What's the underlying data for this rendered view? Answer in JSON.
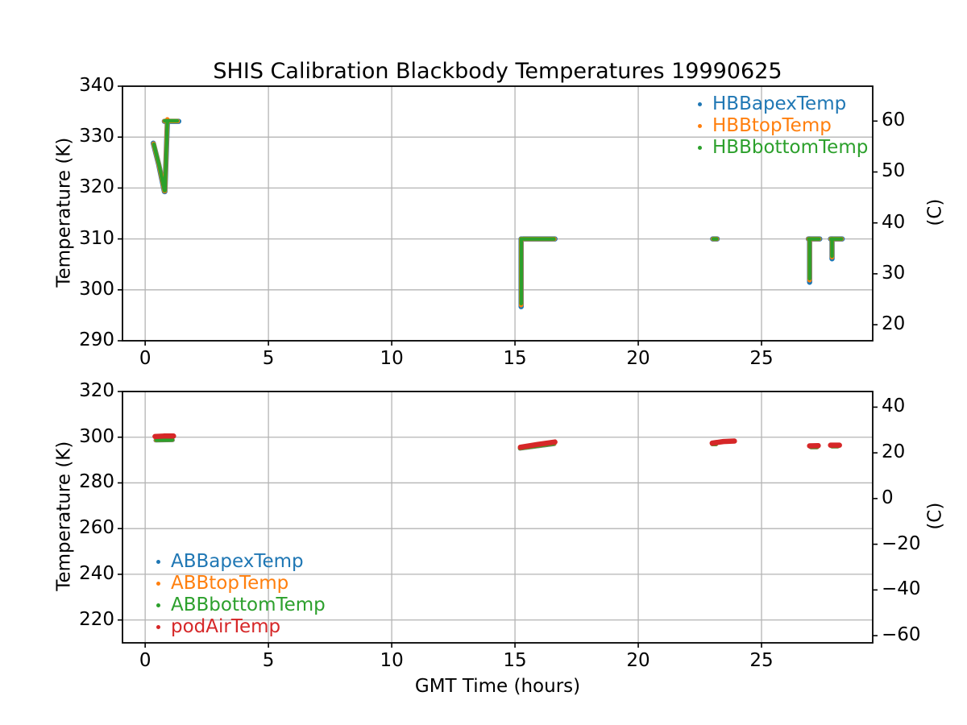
{
  "figure": {
    "title": "SHIS Calibration Blackbody Temperatures 19990625",
    "xlabel": "GMT Time (hours)",
    "background": "#ffffff",
    "grid_color": "#b4b4b4",
    "spine_color": "#000000",
    "text_color": "#000000"
  },
  "chart_data": [
    {
      "type": "scatter",
      "title": "SHIS Calibration Blackbody Temperatures 19990625",
      "xlabel": "GMT Time (hours)",
      "ylabel_left": "Temperature (K)",
      "ylabel_right": "(C)",
      "xlim": [
        -0.92,
        29.51
      ],
      "ylim_k": [
        290,
        340
      ],
      "grid": true,
      "legend_position": "upper right",
      "xticks": [
        0,
        5,
        10,
        15,
        20,
        25
      ],
      "xtick_labels": [
        "0",
        "5",
        "10",
        "15",
        "20",
        "25"
      ],
      "yticks_left": [
        290,
        300,
        310,
        320,
        330,
        340
      ],
      "ytick_left_labels": [
        "290",
        "300",
        "310",
        "320",
        "330",
        "340"
      ],
      "yticks_right_c": [
        20,
        30,
        40,
        50,
        60
      ],
      "ytick_right_labels": [
        "20",
        "30",
        "40",
        "50",
        "60"
      ],
      "legend": [
        {
          "label": "HBBapexTemp",
          "color": "#1f77b4"
        },
        {
          "label": "HBBtopTemp",
          "color": "#ff7f0e"
        },
        {
          "label": "HBBbottomTemp",
          "color": "#2ca02c"
        }
      ],
      "series": [
        {
          "name": "HBBapexTemp",
          "color": "#1f77b4",
          "segments": [
            [
              [
                0.33,
                328.8
              ],
              [
                0.55,
                324.6
              ],
              [
                0.78,
                319.3
              ]
            ],
            [
              [
                0.8,
                319.3
              ],
              [
                0.9,
                333.0
              ]
            ],
            [
              [
                0.78,
                333.1
              ],
              [
                1.36,
                333.1
              ]
            ],
            [
              [
                15.25,
                296.7
              ],
              [
                15.25,
                310.0
              ]
            ],
            [
              [
                15.32,
                310.0
              ],
              [
                16.62,
                310.0
              ]
            ],
            [
              [
                23.02,
                310.0
              ],
              [
                23.2,
                310.0
              ]
            ],
            [
              [
                26.95,
                301.5
              ],
              [
                26.95,
                310.0
              ]
            ],
            [
              [
                26.9,
                310.0
              ],
              [
                27.36,
                310.0
              ]
            ],
            [
              [
                27.86,
                306.1
              ],
              [
                27.86,
                310.0
              ]
            ],
            [
              [
                27.8,
                310.0
              ],
              [
                28.27,
                310.0
              ]
            ]
          ]
        },
        {
          "name": "HBBtopTemp",
          "color": "#ff7f0e",
          "segments": [
            [
              [
                0.34,
                328.7
              ],
              [
                0.56,
                324.5
              ],
              [
                0.78,
                319.4
              ]
            ],
            [
              [
                0.8,
                319.4
              ],
              [
                0.9,
                333.5
              ]
            ],
            [
              [
                0.78,
                333.15
              ],
              [
                1.32,
                333.15
              ]
            ],
            [
              [
                15.25,
                297.0
              ],
              [
                15.25,
                310.0
              ]
            ],
            [
              [
                15.32,
                310.0
              ],
              [
                16.6,
                310.0
              ]
            ],
            [
              [
                23.03,
                310.0
              ],
              [
                23.19,
                310.0
              ]
            ],
            [
              [
                26.95,
                301.9
              ],
              [
                26.95,
                310.0
              ]
            ],
            [
              [
                26.9,
                310.0
              ],
              [
                27.34,
                310.0
              ]
            ],
            [
              [
                27.86,
                306.4
              ],
              [
                27.86,
                310.0
              ]
            ],
            [
              [
                27.81,
                310.0
              ],
              [
                28.25,
                310.0
              ]
            ]
          ]
        },
        {
          "name": "HBBbottomTemp",
          "color": "#2ca02c",
          "segments": [
            [
              [
                0.35,
                328.6
              ],
              [
                0.57,
                324.4
              ],
              [
                0.78,
                319.5
              ]
            ],
            [
              [
                0.8,
                319.5
              ],
              [
                0.9,
                333.1
              ]
            ],
            [
              [
                0.79,
                333.2
              ],
              [
                1.3,
                333.2
              ]
            ],
            [
              [
                15.25,
                297.3
              ],
              [
                15.25,
                310.0
              ]
            ],
            [
              [
                15.3,
                310.0
              ],
              [
                16.58,
                310.0
              ]
            ],
            [
              [
                23.04,
                310.0
              ],
              [
                23.18,
                310.0
              ]
            ],
            [
              [
                26.95,
                302.2
              ],
              [
                26.95,
                310.0
              ]
            ],
            [
              [
                26.91,
                310.0
              ],
              [
                27.33,
                310.0
              ]
            ],
            [
              [
                27.86,
                306.6
              ],
              [
                27.86,
                310.0
              ]
            ],
            [
              [
                27.82,
                310.0
              ],
              [
                28.24,
                310.0
              ]
            ]
          ]
        }
      ]
    },
    {
      "type": "scatter",
      "title": "",
      "xlabel": "GMT Time (hours)",
      "ylabel_left": "Temperature (K)",
      "ylabel_right": "(C)",
      "xlim": [
        -0.92,
        29.51
      ],
      "ylim_k": [
        210,
        320
      ],
      "grid": true,
      "legend_position": "lower left",
      "xticks": [
        0,
        5,
        10,
        15,
        20,
        25
      ],
      "xtick_labels": [
        "0",
        "5",
        "10",
        "15",
        "20",
        "25"
      ],
      "yticks_left": [
        220,
        240,
        260,
        280,
        300,
        320
      ],
      "ytick_left_labels": [
        "220",
        "240",
        "260",
        "280",
        "300",
        "320"
      ],
      "yticks_right_c": [
        -60,
        -40,
        -20,
        0,
        20,
        40
      ],
      "ytick_right_labels": [
        "−60",
        "−40",
        "−20",
        "0",
        "20",
        "40"
      ],
      "legend": [
        {
          "label": "ABBapexTemp",
          "color": "#1f77b4"
        },
        {
          "label": "ABBtopTemp",
          "color": "#ff7f0e"
        },
        {
          "label": "ABBbottomTemp",
          "color": "#2ca02c"
        },
        {
          "label": "podAirTemp",
          "color": "#d62728"
        }
      ],
      "series": [
        {
          "name": "ABBapexTemp",
          "color": "#1f77b4",
          "segments": [
            [
              [
                0.42,
                298.6
              ],
              [
                1.12,
                298.7
              ]
            ],
            [
              [
                15.2,
                295.0
              ],
              [
                16.6,
                297.0
              ]
            ],
            [
              [
                23.0,
                296.9
              ],
              [
                23.16,
                296.9
              ]
            ],
            [
              [
                27.0,
                295.6
              ],
              [
                27.26,
                295.6
              ]
            ],
            [
              [
                27.85,
                295.95
              ],
              [
                28.1,
                295.95
              ]
            ]
          ]
        },
        {
          "name": "ABBtopTemp",
          "color": "#ff7f0e",
          "segments": [
            [
              [
                0.43,
                298.7
              ],
              [
                1.11,
                298.8
              ]
            ],
            [
              [
                15.2,
                295.1
              ],
              [
                16.6,
                297.1
              ]
            ],
            [
              [
                23.0,
                296.95
              ],
              [
                23.16,
                296.95
              ]
            ],
            [
              [
                27.0,
                295.65
              ],
              [
                27.26,
                295.65
              ]
            ],
            [
              [
                27.85,
                296.0
              ],
              [
                28.1,
                296.0
              ]
            ]
          ]
        },
        {
          "name": "ABBbottomTemp",
          "color": "#2ca02c",
          "segments": [
            [
              [
                0.45,
                298.8
              ],
              [
                1.1,
                298.9
              ]
            ],
            [
              [
                15.2,
                295.2
              ],
              [
                16.58,
                297.2
              ]
            ],
            [
              [
                23.0,
                297.0
              ],
              [
                23.15,
                297.0
              ]
            ],
            [
              [
                27.0,
                295.7
              ],
              [
                27.25,
                295.7
              ]
            ],
            [
              [
                27.85,
                296.05
              ],
              [
                28.08,
                296.05
              ]
            ]
          ]
        },
        {
          "name": "podAirTemp",
          "color": "#d62728",
          "segments": [
            [
              [
                0.4,
                300.3
              ],
              [
                0.75,
                300.5
              ],
              [
                1.15,
                300.5
              ]
            ],
            [
              [
                15.22,
                295.6
              ],
              [
                15.9,
                296.8
              ],
              [
                16.62,
                297.9
              ]
            ],
            [
              [
                23.0,
                297.4
              ],
              [
                23.45,
                298.1
              ],
              [
                23.9,
                298.3
              ]
            ],
            [
              [
                26.95,
                296.2
              ],
              [
                27.3,
                296.3
              ]
            ],
            [
              [
                27.8,
                296.5
              ],
              [
                28.16,
                296.5
              ]
            ]
          ]
        }
      ]
    }
  ]
}
